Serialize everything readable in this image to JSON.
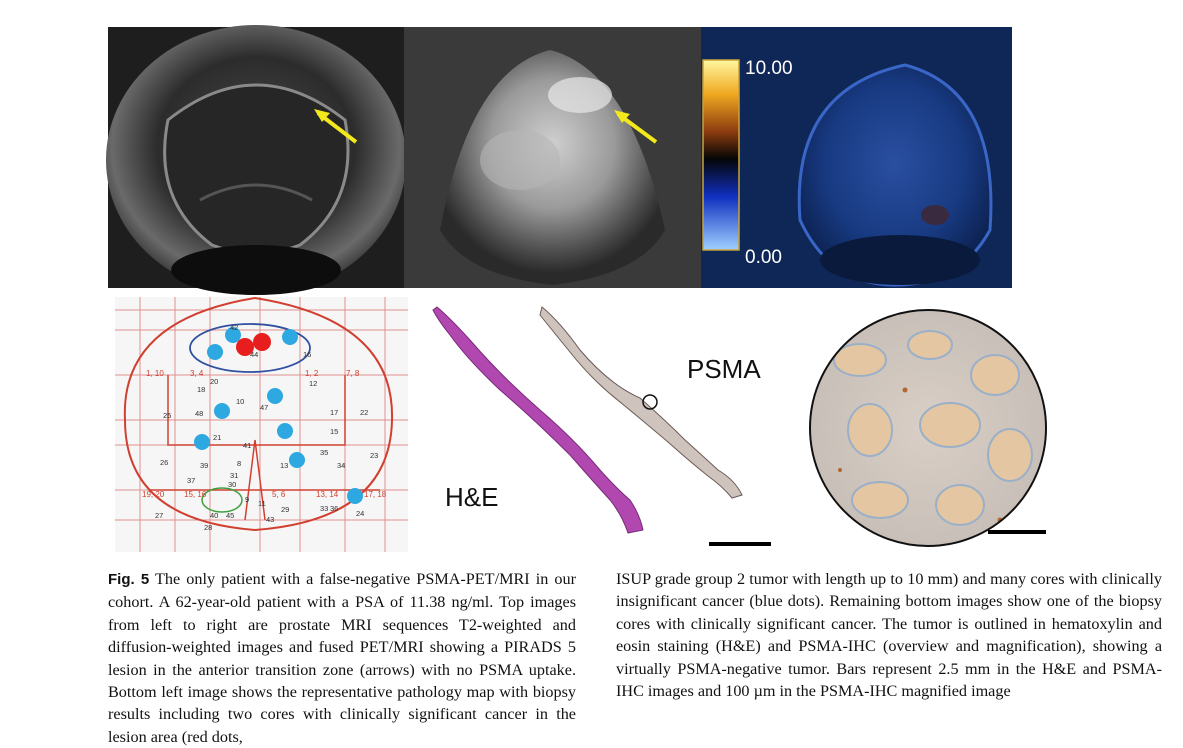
{
  "figure": {
    "label": "Fig. 5",
    "colorbar": {
      "max_label": "10.00",
      "min_label": "0.00"
    },
    "labels": {
      "he": "H&E",
      "psma": "PSMA"
    },
    "map_grid_labels": [
      "1, 10",
      "3, 4",
      "1, 2",
      "7, 8",
      "19, 20",
      "15, 16",
      "5, 6",
      "13, 14",
      "17, 18"
    ],
    "map_core_numbers": [
      "42",
      "44",
      "16",
      "18",
      "20",
      "12",
      "25",
      "48",
      "10",
      "47",
      "17",
      "22",
      "21",
      "15",
      "41",
      "26",
      "39",
      "8",
      "13",
      "35",
      "23",
      "37",
      "31",
      "34",
      "27",
      "30",
      "40",
      "45",
      "11",
      "29",
      "33",
      "36",
      "43",
      "24",
      "28",
      "9"
    ]
  },
  "caption": {
    "left": "The only patient with a false-negative PSMA-PET/MRI in our cohort. A 62-year-old patient with a PSA of 11.38 ng/ml. Top images from left to right are prostate MRI sequences T2-weighted and diffusion-weighted images and fused PET/MRI showing a PIRADS 5 lesion in the anterior transition zone (arrows) with no PSMA uptake. Bottom left image shows the representative pathology map with biopsy results including two cores with clinically significant cancer in the lesion area (red dots,",
    "right": "ISUP grade group 2 tumor with length up to 10 mm) and many cores with clinically insignificant cancer (blue dots). Remaining bottom images show one of the biopsy cores with clinically significant cancer. The tumor is outlined in hematoxylin and eosin staining (H&E) and PSMA-IHC (overview and magnification), showing a virtually PSMA-negative tumor. Bars represent 2.5 mm in the H&E and PSMA-IHC images and 100 µm in the PSMA-IHC magnified image"
  }
}
